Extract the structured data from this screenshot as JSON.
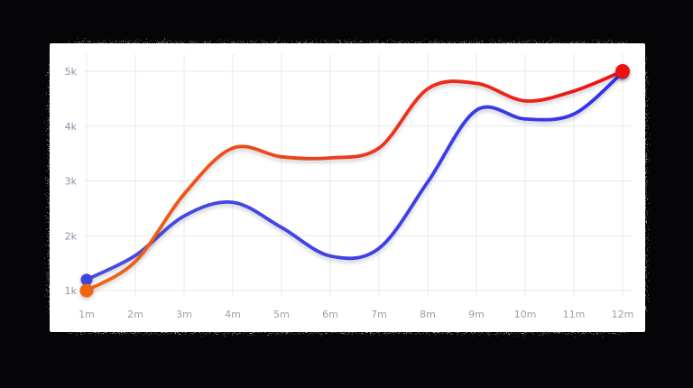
{
  "page": {
    "background_color": "#050507",
    "card_color": "#ffffff",
    "shadow_style": "speckled-noise"
  },
  "chart_data": {
    "type": "line",
    "title": "",
    "xlabel": "",
    "ylabel": "",
    "categories": [
      "1m",
      "2m",
      "3m",
      "4m",
      "5m",
      "6m",
      "7m",
      "8m",
      "9m",
      "10m",
      "11m",
      "12m"
    ],
    "y_ticks": [
      "1k",
      "2k",
      "3k",
      "4k",
      "5k"
    ],
    "y_tick_values": [
      1000,
      2000,
      3000,
      4000,
      5000
    ],
    "ylim": [
      1000,
      5000
    ],
    "grid": true,
    "legend": "none",
    "grid_color": "#e9e9ec",
    "axis_label_colors": {
      "y": "#8793a6",
      "x": "#9aa0a8"
    },
    "series": [
      {
        "name": "blue",
        "values": [
          1200,
          1640,
          2360,
          2610,
          2150,
          1630,
          1770,
          2980,
          4290,
          4130,
          4220,
          4980
        ],
        "gradient": [
          "#4a4cdf",
          "#4040e8",
          "#3431ef"
        ],
        "markers": {
          "start": {
            "color": "#3c46de",
            "r": 6.5
          },
          "end": {
            "color": "#3431ef",
            "r": 7.5
          }
        }
      },
      {
        "name": "red",
        "values": [
          1000,
          1530,
          2760,
          3600,
          3440,
          3420,
          3600,
          4680,
          4780,
          4460,
          4640,
          5000
        ],
        "gradient": [
          "#ee6710",
          "#e93a1e",
          "#ee1111"
        ],
        "markers": {
          "start": {
            "color": "#ee660e",
            "r": 7.5
          },
          "end": {
            "color": "#ee1111",
            "r": 8
          }
        }
      }
    ]
  }
}
